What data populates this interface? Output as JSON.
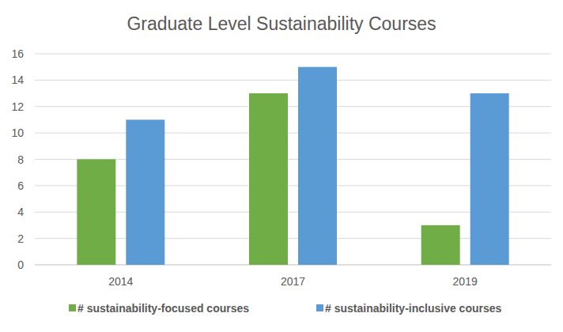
{
  "chart_data": {
    "type": "bar",
    "title": "Graduate Level Sustainability Courses",
    "categories": [
      "2014",
      "2017",
      "2019"
    ],
    "series": [
      {
        "name": "# sustainability-focused courses",
        "color": "#70ad47",
        "values": [
          8,
          13,
          3
        ]
      },
      {
        "name": "# sustainability-inclusive courses",
        "color": "#5b9bd5",
        "values": [
          11,
          15,
          13
        ]
      }
    ],
    "ylim": [
      0,
      16
    ],
    "yticks": [
      0,
      2,
      4,
      6,
      8,
      10,
      12,
      14,
      16
    ],
    "grid": true,
    "legend": "bottom"
  }
}
